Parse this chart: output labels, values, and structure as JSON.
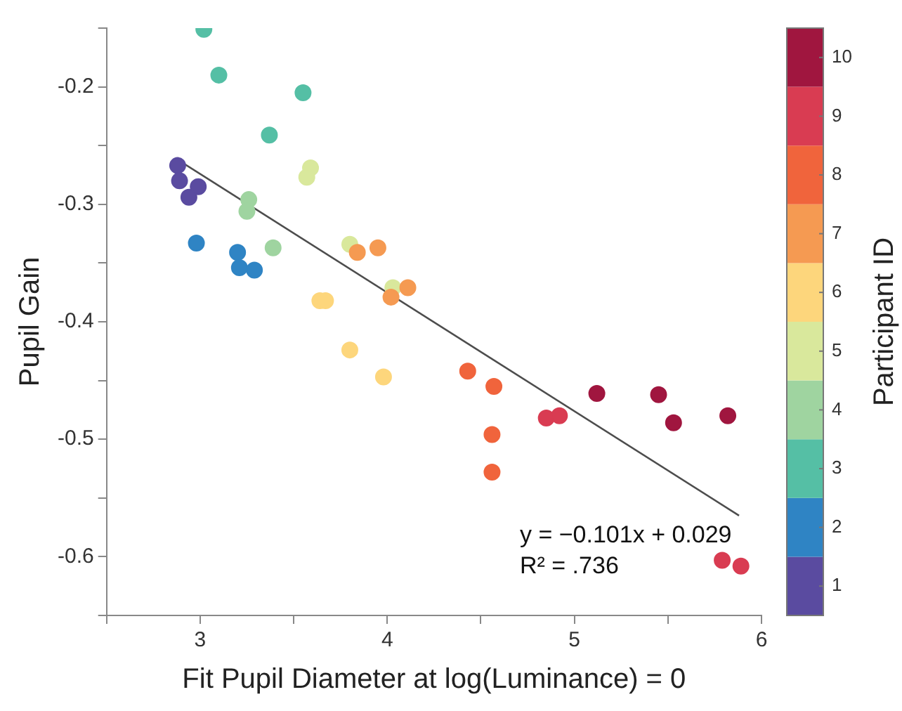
{
  "chart_data": {
    "type": "scatter",
    "xlabel": "Fit Pupil Diameter at log(Luminance) = 0",
    "ylabel": "Pupil Gain",
    "clabel": "Participant ID",
    "xlim": [
      2.5,
      6
    ],
    "xticks": [
      {
        "value": 2.5,
        "label": null
      },
      3,
      {
        "value": 3.5,
        "label": null
      },
      4,
      {
        "value": 4.5,
        "label": null
      },
      5,
      {
        "value": 5.5,
        "label": null
      },
      6
    ],
    "ylim": [
      -0.65,
      -0.15
    ],
    "yticks": [
      {
        "value": -0.65,
        "label": null
      },
      -0.6,
      {
        "value": -0.55,
        "label": null
      },
      -0.5,
      {
        "value": -0.45,
        "label": null
      },
      -0.4,
      {
        "value": -0.35,
        "label": null
      },
      -0.3,
      {
        "value": -0.25,
        "label": null
      },
      -0.2,
      {
        "value": -0.15,
        "label": null
      }
    ],
    "clim": [
      0.5,
      10.5
    ],
    "cticks": [
      1,
      2,
      3,
      4,
      5,
      6,
      7,
      8,
      9,
      10
    ],
    "annotations": [
      "y = −0.101x + 0.029",
      "R² = .736"
    ],
    "marker": "circle",
    "series": [
      {
        "x": [
          2.88,
          2.89,
          2.99,
          2.94,
          2.98,
          3.2,
          3.21,
          3.29,
          3.02,
          3.1,
          3.55,
          3.37,
          3.26,
          3.25,
          3.39,
          3.59,
          3.57,
          3.8,
          4.03,
          3.64,
          3.67,
          3.8,
          3.98,
          3.84,
          3.95,
          4.11,
          4.02,
          4.43,
          4.57,
          4.56,
          4.56,
          4.85,
          4.92,
          5.79,
          5.89,
          5.12,
          5.45,
          5.53,
          5.82
        ],
        "values": [
          -0.267,
          -0.28,
          -0.285,
          -0.294,
          -0.333,
          -0.341,
          -0.354,
          -0.356,
          -0.151,
          -0.19,
          -0.205,
          -0.241,
          -0.296,
          -0.306,
          -0.337,
          -0.269,
          -0.277,
          -0.334,
          -0.371,
          -0.382,
          -0.382,
          -0.424,
          -0.447,
          -0.341,
          -0.337,
          -0.371,
          -0.379,
          -0.442,
          -0.455,
          -0.496,
          -0.528,
          -0.482,
          -0.48,
          -0.603,
          -0.608,
          -0.461,
          -0.462,
          -0.486,
          -0.48
        ],
        "cvalues": [
          1,
          1,
          1,
          1,
          2,
          2,
          2,
          2,
          3,
          3,
          3,
          3,
          4,
          4,
          4,
          5,
          5,
          5,
          5,
          6,
          6,
          6,
          6,
          7,
          7,
          7,
          7,
          8,
          8,
          8,
          8,
          9,
          9,
          9,
          9,
          10,
          10,
          10,
          10
        ],
        "colors": [
          "#5a4ba0",
          "#5a4ba0",
          "#5a4ba0",
          "#5a4ba0",
          "#2f84c4",
          "#2f84c4",
          "#2f84c4",
          "#2f84c4",
          "#55bfa5",
          "#55bfa5",
          "#55bfa5",
          "#55bfa5",
          "#9fd4a0",
          "#9fd4a0",
          "#9fd4a0",
          "#d9e89c",
          "#d9e89c",
          "#d9e89c",
          "#d9e89c",
          "#fdd67c",
          "#fdd67c",
          "#fdd67c",
          "#fdd67c",
          "#f59a52",
          "#f59a52",
          "#f59a52",
          "#f59a52",
          "#f0643c",
          "#f0643c",
          "#f0643c",
          "#f0643c",
          "#d93c52",
          "#d93c52",
          "#d93c52",
          "#d93c52",
          "#a0163f",
          "#a0163f",
          "#a0163f",
          "#a0163f"
        ]
      },
      {
        "type": "line",
        "x": [
          2.88,
          5.88
        ],
        "values": [
          -0.262,
          -0.565
        ],
        "color": "#4d4d4d",
        "marker": "none"
      }
    ]
  }
}
